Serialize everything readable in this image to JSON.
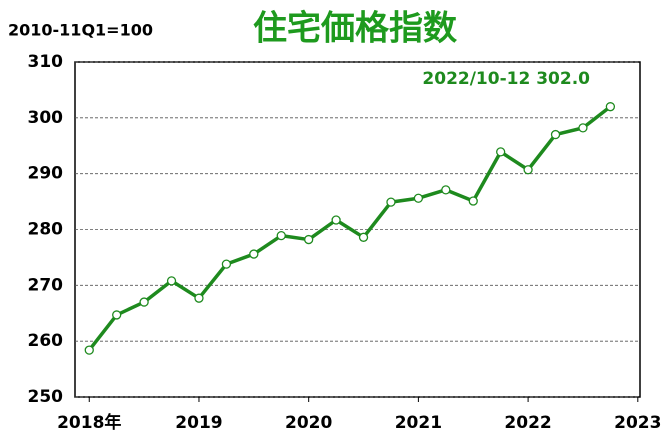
{
  "chart_data": {
    "type": "line",
    "title": "住宅価格指数",
    "subtitle": "2010-11Q1=100",
    "annotation": "2022/10-12  302.0",
    "x": [
      2018,
      2018.25,
      2018.5,
      2018.75,
      2019,
      2019.25,
      2019.5,
      2019.75,
      2020,
      2020.25,
      2020.5,
      2020.75,
      2021,
      2021.25,
      2021.5,
      2021.75,
      2022,
      2022.25,
      2022.5,
      2022.75
    ],
    "series": [
      {
        "name": "住宅価格指数",
        "color": "#1e8a1e",
        "values": [
          258.4,
          264.7,
          267.0,
          270.8,
          267.7,
          273.8,
          275.6,
          278.9,
          278.2,
          281.7,
          278.6,
          284.9,
          285.6,
          287.1,
          285.1,
          293.9,
          290.7,
          297.0,
          298.2,
          302.0
        ]
      }
    ],
    "xlim": [
      2017.87,
      2023.02
    ],
    "xticks": [
      {
        "value": 2018,
        "label": "2018年"
      },
      2019,
      2020,
      2021,
      2022,
      2023
    ],
    "ylim": [
      250,
      310
    ],
    "yticks": [
      250,
      260,
      270,
      280,
      290,
      300,
      310
    ],
    "grid": true
  }
}
